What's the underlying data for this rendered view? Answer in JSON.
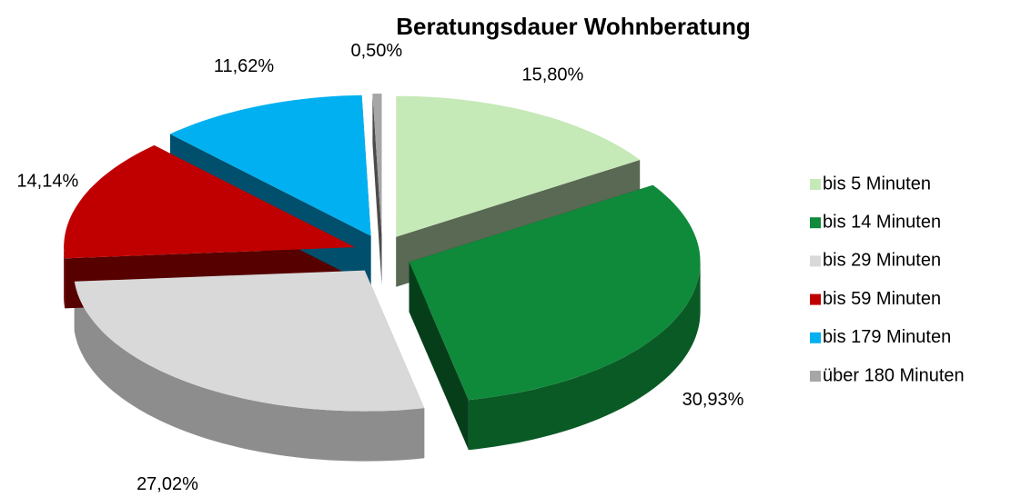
{
  "chart_data": {
    "type": "pie",
    "title": "Beratungsdauer Wohnberatung",
    "categories": [
      "bis 5 Minuten",
      "bis 14 Minuten",
      "bis 29 Minuten",
      "bis 59 Minuten",
      "bis 179 Minuten",
      "über 180 Minuten"
    ],
    "values": [
      15.8,
      30.93,
      27.02,
      14.14,
      11.62,
      0.5
    ],
    "value_labels": [
      "15,80%",
      "30,93%",
      "27,02%",
      "14,14%",
      "11,62%",
      "0,50%"
    ],
    "colors": [
      "#c6e9b8",
      "#0f8a3a",
      "#d9d9d9",
      "#c00000",
      "#00b0f0",
      "#a6a6a6"
    ],
    "legend": "right"
  }
}
